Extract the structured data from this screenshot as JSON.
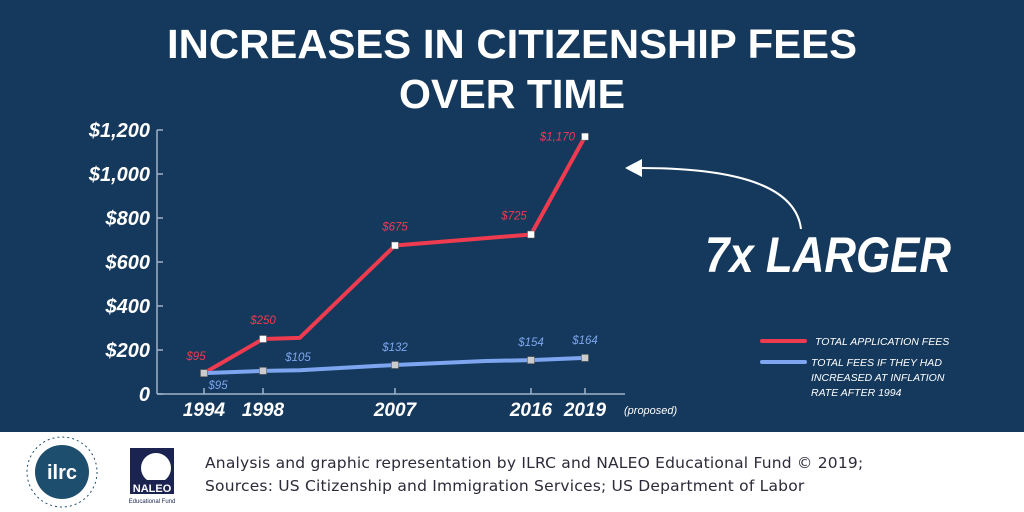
{
  "title_lines": [
    "INCREASES IN CITIZENSHIP FEES",
    "OVER TIME"
  ],
  "callout": "7x LARGER",
  "colors": {
    "background": "#15395c",
    "total_fees": "#ef3b4f",
    "inflation": "#7ea6f0",
    "text": "#ffffff"
  },
  "chart_data": {
    "type": "line",
    "title": "INCREASES IN CITIZENSHIP FEES OVER TIME",
    "xlabel": "",
    "ylabel": "",
    "x_ticks": [
      "1994",
      "1998",
      "2007",
      "2016",
      "2019"
    ],
    "x_tick_note": "(proposed)",
    "y_ticks": [
      "0",
      "$200",
      "$400",
      "$600",
      "$800",
      "$1,000",
      "$1,200"
    ],
    "ylim": [
      0,
      1200
    ],
    "grid": false,
    "legend_placement": "right",
    "series": [
      {
        "name": "TOTAL APPLICATION FEES",
        "color": "#ef3b4f",
        "points": [
          {
            "x": 1994,
            "y": 95,
            "label": "$95"
          },
          {
            "x": 1998,
            "y": 250,
            "label": "$250"
          },
          {
            "x": 2000.5,
            "y": 255
          },
          {
            "x": 2007,
            "y": 675,
            "label": "$675"
          },
          {
            "x": 2016,
            "y": 725,
            "label": "$725"
          },
          {
            "x": 2019,
            "y": 1170,
            "label": "$1,170"
          }
        ]
      },
      {
        "name": "TOTAL FEES IF THEY HAD INCREASED AT INFLATION RATE AFTER 1994",
        "color": "#7ea6f0",
        "points": [
          {
            "x": 1994,
            "y": 95,
            "label": "$95"
          },
          {
            "x": 1998,
            "y": 105,
            "label": "$105"
          },
          {
            "x": 2000.5,
            "y": 108
          },
          {
            "x": 2007,
            "y": 132,
            "label": "$132"
          },
          {
            "x": 2013,
            "y": 150
          },
          {
            "x": 2016,
            "y": 154,
            "label": "$154"
          },
          {
            "x": 2019,
            "y": 164,
            "label": "$164"
          }
        ]
      }
    ]
  },
  "legend": {
    "items": [
      {
        "lines": [
          "TOTAL APPLICATION FEES"
        ]
      },
      {
        "lines": [
          "TOTAL FEES IF THEY HAD",
          "INCREASED AT INFLATION",
          "RATE AFTER 1994"
        ]
      }
    ]
  },
  "footer": {
    "logo_ilrc": {
      "text": "ilrc",
      "ring_text": "IMMIGRANT LEGAL RESOURCE CENTER"
    },
    "logo_naleo": {
      "text": "NALEO",
      "sub": "Educational Fund"
    },
    "credit_lines": [
      "Analysis and graphic representation by ILRC and NALEO Educational Fund © 2019;",
      "Sources: US Citizenship and Immigration Services; US Department of Labor"
    ]
  }
}
